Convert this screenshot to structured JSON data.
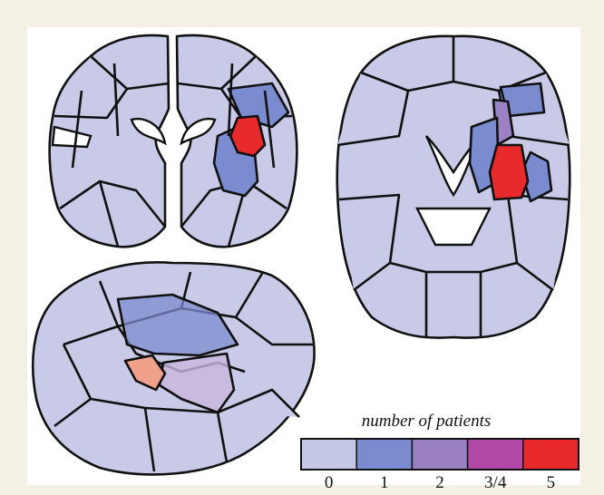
{
  "legend": {
    "title": "number of patients",
    "items": [
      {
        "label": "0",
        "color": "#c5c7e6"
      },
      {
        "label": "1",
        "color": "#7b8bcf"
      },
      {
        "label": "2",
        "color": "#9a7fc3"
      },
      {
        "label": "3/4",
        "color": "#b14aa6"
      },
      {
        "label": "5",
        "color": "#e8292c"
      }
    ]
  }
}
